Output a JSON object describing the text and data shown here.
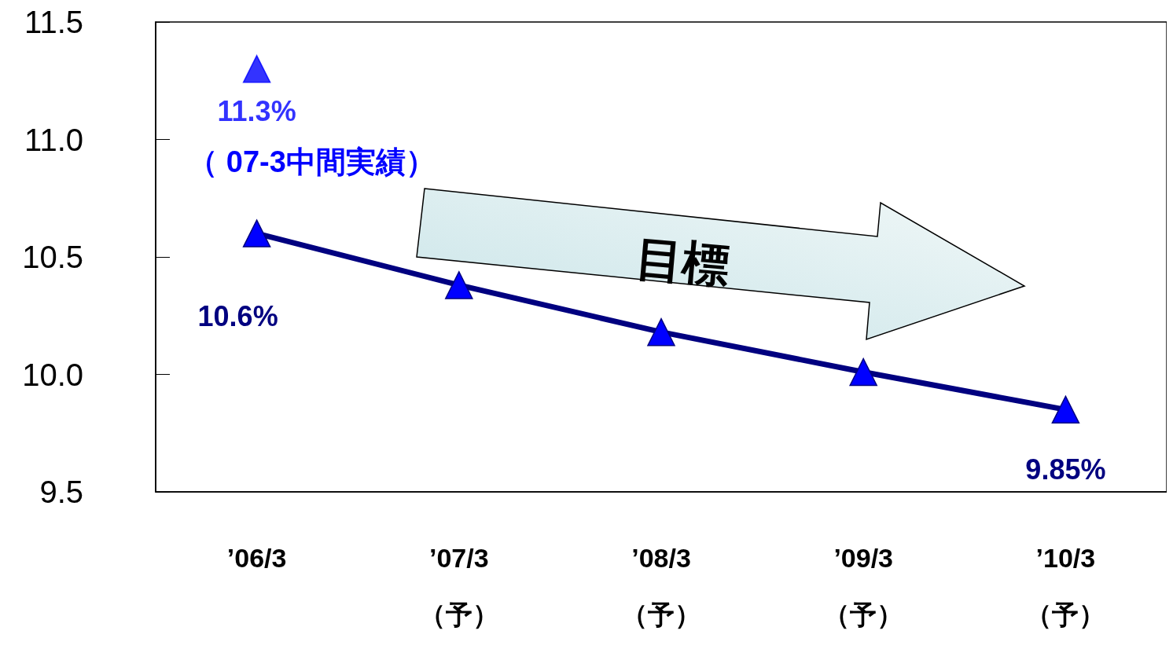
{
  "chart_data": {
    "type": "line",
    "categories": [
      "’06/3",
      "’07/3\n（予）",
      "’08/3\n（予）",
      "’09/3\n（予）",
      "’10/3\n（予）"
    ],
    "ylim": [
      9.5,
      11.5
    ],
    "yticks": [
      {
        "value": 9.5,
        "label": "9.5"
      },
      {
        "value": 10,
        "label": "10.0"
      },
      {
        "value": 10.5,
        "label": "10.5"
      },
      {
        "value": 11,
        "label": "11.0"
      },
      {
        "value": 11.5,
        "label": "11.5"
      }
    ],
    "series": [
      {
        "color": "#000080",
        "values": [
          10.6,
          10.38,
          10.18,
          10.01,
          9.85
        ],
        "value_labels": [
          "10.6%",
          null,
          null,
          null,
          "9.85%"
        ]
      },
      {
        "type": "scatter",
        "color": "#0000ff",
        "x": [
          "’06/3"
        ],
        "values": [
          11.3
        ],
        "value_labels": [
          "11.3%"
        ]
      }
    ],
    "annotations": [
      {
        "text": "（ 07-3中間実績）",
        "x": "’06/3",
        "y": 11.3
      },
      "目標"
    ],
    "marker": "triangle",
    "line_style": "solid",
    "grid": false
  }
}
